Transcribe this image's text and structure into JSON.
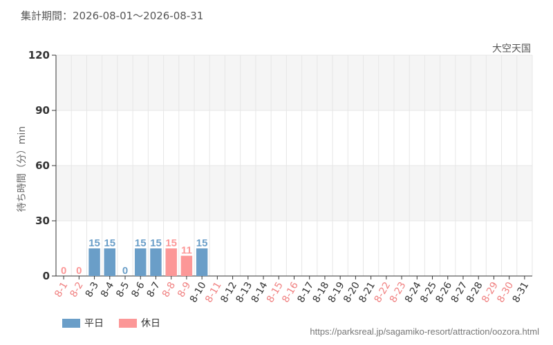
{
  "period_label": "集計期間：2026-08-01～2026-08-31",
  "attraction_name": "大空天国",
  "source_url": "https://parksreal.jp/sagamiko-resort/attraction/oozora.html",
  "legend": {
    "weekday": "平日",
    "holiday": "休日"
  },
  "colors": {
    "weekday": "#6a9ec8",
    "holiday": "#fc9797",
    "grid": "#e6e6e6",
    "band": "#f5f5f5",
    "axis": "#333333"
  },
  "chart_data": {
    "type": "bar",
    "ylabel": "待ち時間（分）min",
    "ylim": [
      0,
      120
    ],
    "yticks": [
      "0",
      "30",
      "60",
      "90",
      "120"
    ],
    "categories": [
      "8-1",
      "8-2",
      "8-3",
      "8-4",
      "8-5",
      "8-6",
      "8-7",
      "8-8",
      "8-9",
      "8-10",
      "8-11",
      "8-12",
      "8-13",
      "8-14",
      "8-15",
      "8-16",
      "8-17",
      "8-18",
      "8-19",
      "8-20",
      "8-21",
      "8-22",
      "8-23",
      "8-24",
      "8-25",
      "8-26",
      "8-27",
      "8-28",
      "8-29",
      "8-30",
      "8-31"
    ],
    "values": [
      0,
      0,
      15,
      15,
      0,
      15,
      15,
      15,
      11,
      15,
      null,
      null,
      null,
      null,
      null,
      null,
      null,
      null,
      null,
      null,
      null,
      null,
      null,
      null,
      null,
      null,
      null,
      null,
      null,
      null,
      null
    ],
    "value_labels": [
      "0",
      "0",
      "15",
      "15",
      "0",
      "15",
      "15",
      "15",
      "11",
      "15",
      "",
      "",
      "",
      "",
      "",
      "",
      "",
      "",
      "",
      "",
      "",
      "",
      "",
      "",
      "",
      "",
      "",
      "",
      "",
      "",
      ""
    ],
    "day_type": [
      "holiday",
      "holiday",
      "weekday",
      "weekday",
      "weekday",
      "weekday",
      "weekday",
      "holiday",
      "holiday",
      "weekday",
      "holiday",
      "weekday",
      "weekday",
      "weekday",
      "holiday",
      "holiday",
      "weekday",
      "weekday",
      "weekday",
      "weekday",
      "weekday",
      "holiday",
      "holiday",
      "weekday",
      "weekday",
      "weekday",
      "weekday",
      "weekday",
      "holiday",
      "holiday",
      "weekday"
    ]
  }
}
